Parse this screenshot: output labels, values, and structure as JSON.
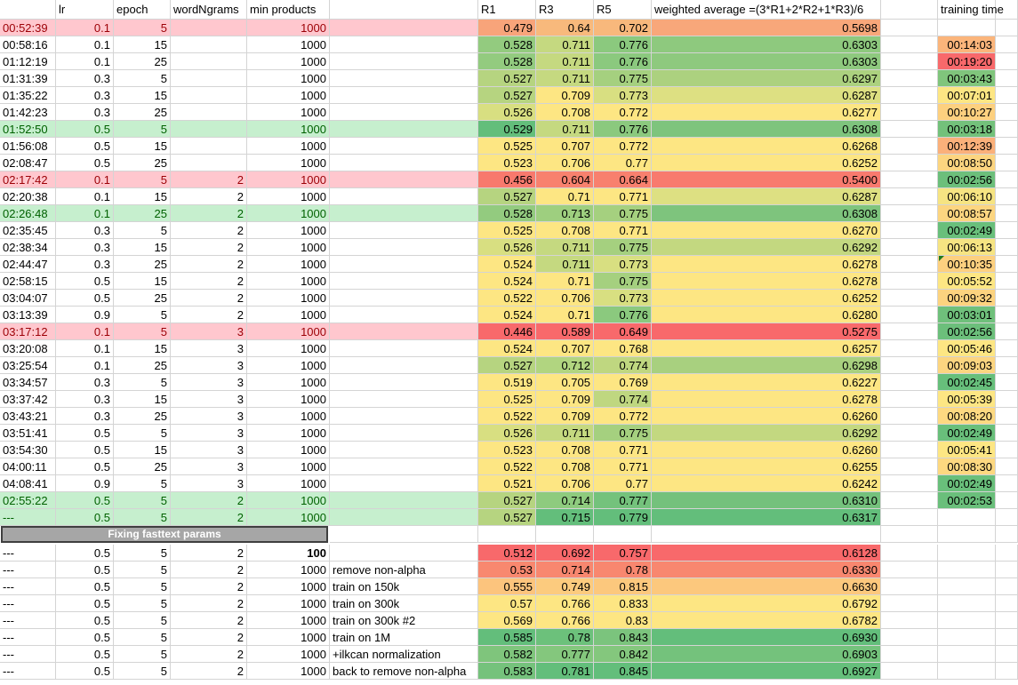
{
  "headers": {
    "time": "",
    "lr": "lr",
    "epoch": "epoch",
    "ngrams": "wordNgrams",
    "minp": "min products",
    "note": "",
    "r1": "R1",
    "r3": "R3",
    "r5": "R5",
    "wavg": "weighted average =(3*R1+2*R2+1*R3)/6",
    "gap": "",
    "ttime": "training time"
  },
  "rows": [
    {
      "time": "00:52:39",
      "lr": "0.1",
      "epoch": "5",
      "ngrams": "",
      "minp": "1000",
      "note": "",
      "r1": "0.479",
      "r3": "0.64",
      "r5": "0.702",
      "wavg": "0.5698",
      "ttime": "",
      "hl": "red",
      "c1": "#f8a47a",
      "c3": "#f8b97c",
      "c5": "#f8b87c",
      "cw": "#f8a77a",
      "ct": ""
    },
    {
      "time": "00:58:16",
      "lr": "0.1",
      "epoch": "15",
      "ngrams": "",
      "minp": "1000",
      "note": "",
      "r1": "0.528",
      "r3": "0.711",
      "r5": "0.776",
      "wavg": "0.6303",
      "ttime": "00:14:03",
      "hl": "",
      "c1": "#93cb7f",
      "c3": "#c5d980",
      "c5": "#8bc97e",
      "cw": "#8ec97e",
      "ct": "#fbb57b"
    },
    {
      "time": "01:12:19",
      "lr": "0.1",
      "epoch": "25",
      "ngrams": "",
      "minp": "1000",
      "note": "",
      "r1": "0.528",
      "r3": "0.711",
      "r5": "0.776",
      "wavg": "0.6303",
      "ttime": "00:19:20",
      "hl": "",
      "c1": "#93cb7f",
      "c3": "#c5d980",
      "c5": "#8bc97e",
      "cw": "#8ec97e",
      "ct": "#f8696b"
    },
    {
      "time": "01:31:39",
      "lr": "0.3",
      "epoch": "5",
      "ngrams": "",
      "minp": "1000",
      "note": "",
      "r1": "0.527",
      "r3": "0.711",
      "r5": "0.775",
      "wavg": "0.6297",
      "ttime": "00:03:43",
      "hl": "",
      "c1": "#b6d480",
      "c3": "#c5d980",
      "c5": "#a5d07f",
      "cw": "#acd17f",
      "ct": "#80c57c"
    },
    {
      "time": "01:35:22",
      "lr": "0.3",
      "epoch": "15",
      "ngrams": "",
      "minp": "1000",
      "note": "",
      "r1": "0.527",
      "r3": "0.709",
      "r5": "0.773",
      "wavg": "0.6287",
      "ttime": "00:07:01",
      "hl": "",
      "c1": "#b6d480",
      "c3": "#fde683",
      "c5": "#d8df81",
      "cw": "#dde082",
      "ct": "#fde683"
    },
    {
      "time": "01:42:23",
      "lr": "0.3",
      "epoch": "25",
      "ngrams": "",
      "minp": "1000",
      "note": "",
      "r1": "0.526",
      "r3": "0.708",
      "r5": "0.772",
      "wavg": "0.6277",
      "ttime": "00:10:27",
      "hl": "",
      "c1": "#d8df81",
      "c3": "#fde683",
      "c5": "#fde683",
      "cw": "#fde683",
      "ct": "#fdd07f"
    },
    {
      "time": "01:52:50",
      "lr": "0.5",
      "epoch": "5",
      "ngrams": "",
      "minp": "1000",
      "note": "",
      "r1": "0.529",
      "r3": "0.711",
      "r5": "0.776",
      "wavg": "0.6308",
      "ttime": "00:03:18",
      "hl": "green",
      "c1": "#63be7b",
      "c3": "#c5d980",
      "c5": "#8bc97e",
      "cw": "#7ec47d",
      "ct": "#73c17b"
    },
    {
      "time": "01:56:08",
      "lr": "0.5",
      "epoch": "15",
      "ngrams": "",
      "minp": "1000",
      "note": "",
      "r1": "0.525",
      "r3": "0.707",
      "r5": "0.772",
      "wavg": "0.6268",
      "ttime": "00:12:39",
      "hl": "",
      "c1": "#fde683",
      "c3": "#fde683",
      "c5": "#fde683",
      "cw": "#fde683",
      "ct": "#fbb07a"
    },
    {
      "time": "02:08:47",
      "lr": "0.5",
      "epoch": "25",
      "ngrams": "",
      "minp": "1000",
      "note": "",
      "r1": "0.523",
      "r3": "0.706",
      "r5": "0.77",
      "wavg": "0.6252",
      "ttime": "00:08:50",
      "hl": "",
      "c1": "#fde683",
      "c3": "#fde683",
      "c5": "#fde683",
      "cw": "#fde683",
      "ct": "#fcd580"
    },
    {
      "time": "02:17:42",
      "lr": "0.1",
      "epoch": "5",
      "ngrams": "2",
      "minp": "1000",
      "note": "",
      "r1": "0.456",
      "r3": "0.604",
      "r5": "0.664",
      "wavg": "0.5400",
      "ttime": "00:02:56",
      "hl": "red",
      "c1": "#f8796d",
      "c3": "#f8816e",
      "c5": "#f8806e",
      "cw": "#f87a6e",
      "ct": "#6cbf7b"
    },
    {
      "time": "02:20:38",
      "lr": "0.1",
      "epoch": "15",
      "ngrams": "2",
      "minp": "1000",
      "note": "",
      "r1": "0.527",
      "r3": "0.71",
      "r5": "0.771",
      "wavg": "0.6287",
      "ttime": "00:06:10",
      "hl": "",
      "c1": "#b6d480",
      "c3": "#fde683",
      "c5": "#fde683",
      "cw": "#dde082",
      "ct": "#f6e482"
    },
    {
      "time": "02:26:48",
      "lr": "0.1",
      "epoch": "25",
      "ngrams": "2",
      "minp": "1000",
      "note": "",
      "r1": "0.528",
      "r3": "0.713",
      "r5": "0.775",
      "wavg": "0.6308",
      "ttime": "00:08:57",
      "hl": "green",
      "c1": "#93cb7f",
      "c3": "#9ecf7f",
      "c5": "#a5d07f",
      "cw": "#7ec47d",
      "ct": "#fcd580"
    },
    {
      "time": "02:35:45",
      "lr": "0.3",
      "epoch": "5",
      "ngrams": "2",
      "minp": "1000",
      "note": "",
      "r1": "0.525",
      "r3": "0.708",
      "r5": "0.771",
      "wavg": "0.6270",
      "ttime": "00:02:49",
      "hl": "",
      "c1": "#fde683",
      "c3": "#fde683",
      "c5": "#fde683",
      "cw": "#fde683",
      "ct": "#69bf7b"
    },
    {
      "time": "02:38:34",
      "lr": "0.3",
      "epoch": "15",
      "ngrams": "2",
      "minp": "1000",
      "note": "",
      "r1": "0.526",
      "r3": "0.711",
      "r5": "0.775",
      "wavg": "0.6292",
      "ttime": "00:06:13",
      "hl": "",
      "c1": "#d8df81",
      "c3": "#c5d980",
      "c5": "#a5d07f",
      "cw": "#c3d880",
      "ct": "#f6e482"
    },
    {
      "time": "02:44:47",
      "lr": "0.3",
      "epoch": "25",
      "ngrams": "2",
      "minp": "1000",
      "note": "",
      "r1": "0.524",
      "r3": "0.711",
      "r5": "0.773",
      "wavg": "0.6278",
      "ttime": "00:10:35",
      "hl": "",
      "c1": "#fde683",
      "c3": "#c5d980",
      "c5": "#d8df81",
      "cw": "#fde683",
      "ct": "#fdd07f"
    },
    {
      "time": "02:58:15",
      "lr": "0.5",
      "epoch": "15",
      "ngrams": "2",
      "minp": "1000",
      "note": "",
      "r1": "0.524",
      "r3": "0.71",
      "r5": "0.775",
      "wavg": "0.6278",
      "ttime": "00:05:52",
      "hl": "",
      "c1": "#fde683",
      "c3": "#fde683",
      "c5": "#a5d07f",
      "cw": "#fde683",
      "ct": "#fde683"
    },
    {
      "time": "03:04:07",
      "lr": "0.5",
      "epoch": "25",
      "ngrams": "2",
      "minp": "1000",
      "note": "",
      "r1": "0.522",
      "r3": "0.706",
      "r5": "0.773",
      "wavg": "0.6252",
      "ttime": "00:09:32",
      "hl": "",
      "c1": "#fde683",
      "c3": "#fde683",
      "c5": "#d8df81",
      "cw": "#fde683",
      "ct": "#fcd37f"
    },
    {
      "time": "03:13:39",
      "lr": "0.9",
      "epoch": "5",
      "ngrams": "2",
      "minp": "1000",
      "note": "",
      "r1": "0.524",
      "r3": "0.71",
      "r5": "0.776",
      "wavg": "0.6280",
      "ttime": "00:03:01",
      "hl": "",
      "c1": "#fde683",
      "c3": "#fde683",
      "c5": "#8bc97e",
      "cw": "#fde683",
      "ct": "#6fc07b"
    },
    {
      "time": "03:17:12",
      "lr": "0.1",
      "epoch": "5",
      "ngrams": "3",
      "minp": "1000",
      "note": "",
      "r1": "0.446",
      "r3": "0.589",
      "r5": "0.649",
      "wavg": "0.5275",
      "ttime": "00:02:56",
      "hl": "red",
      "c1": "#f8696b",
      "c3": "#f8696b",
      "c5": "#f8696b",
      "cw": "#f8696b",
      "ct": "#6cbf7b"
    },
    {
      "time": "03:20:08",
      "lr": "0.1",
      "epoch": "15",
      "ngrams": "3",
      "minp": "1000",
      "note": "",
      "r1": "0.524",
      "r3": "0.707",
      "r5": "0.768",
      "wavg": "0.6257",
      "ttime": "00:05:46",
      "hl": "",
      "c1": "#fde683",
      "c3": "#fde683",
      "c5": "#fde683",
      "cw": "#fde683",
      "ct": "#fde683"
    },
    {
      "time": "03:25:54",
      "lr": "0.1",
      "epoch": "25",
      "ngrams": "3",
      "minp": "1000",
      "note": "",
      "r1": "0.527",
      "r3": "0.712",
      "r5": "0.774",
      "wavg": "0.6298",
      "ttime": "00:09:03",
      "hl": "",
      "c1": "#b6d480",
      "c3": "#b1d580",
      "c5": "#bfd780",
      "cw": "#a8d07f",
      "ct": "#fcd580"
    },
    {
      "time": "03:34:57",
      "lr": "0.3",
      "epoch": "5",
      "ngrams": "3",
      "minp": "1000",
      "note": "",
      "r1": "0.519",
      "r3": "0.705",
      "r5": "0.769",
      "wavg": "0.6227",
      "ttime": "00:02:45",
      "hl": "",
      "c1": "#fde683",
      "c3": "#fde683",
      "c5": "#fde683",
      "cw": "#fde683",
      "ct": "#67bf7b"
    },
    {
      "time": "03:37:42",
      "lr": "0.3",
      "epoch": "15",
      "ngrams": "3",
      "minp": "1000",
      "note": "",
      "r1": "0.525",
      "r3": "0.709",
      "r5": "0.774",
      "wavg": "0.6278",
      "ttime": "00:05:39",
      "hl": "",
      "c1": "#fde683",
      "c3": "#fde683",
      "c5": "#bfd780",
      "cw": "#fde683",
      "ct": "#fde683"
    },
    {
      "time": "03:43:21",
      "lr": "0.3",
      "epoch": "25",
      "ngrams": "3",
      "minp": "1000",
      "note": "",
      "r1": "0.522",
      "r3": "0.709",
      "r5": "0.772",
      "wavg": "0.6260",
      "ttime": "00:08:20",
      "hl": "",
      "c1": "#fde683",
      "c3": "#fde683",
      "c5": "#fde683",
      "cw": "#fde683",
      "ct": "#fdd981"
    },
    {
      "time": "03:51:41",
      "lr": "0.5",
      "epoch": "5",
      "ngrams": "3",
      "minp": "1000",
      "note": "",
      "r1": "0.526",
      "r3": "0.711",
      "r5": "0.775",
      "wavg": "0.6292",
      "ttime": "00:02:49",
      "hl": "",
      "c1": "#d8df81",
      "c3": "#c5d980",
      "c5": "#a5d07f",
      "cw": "#c3d880",
      "ct": "#69bf7b"
    },
    {
      "time": "03:54:30",
      "lr": "0.5",
      "epoch": "15",
      "ngrams": "3",
      "minp": "1000",
      "note": "",
      "r1": "0.523",
      "r3": "0.708",
      "r5": "0.771",
      "wavg": "0.6260",
      "ttime": "00:05:41",
      "hl": "",
      "c1": "#fde683",
      "c3": "#fde683",
      "c5": "#fde683",
      "cw": "#fde683",
      "ct": "#fde683"
    },
    {
      "time": "04:00:11",
      "lr": "0.5",
      "epoch": "25",
      "ngrams": "3",
      "minp": "1000",
      "note": "",
      "r1": "0.522",
      "r3": "0.708",
      "r5": "0.771",
      "wavg": "0.6255",
      "ttime": "00:08:30",
      "hl": "",
      "c1": "#fde683",
      "c3": "#fde683",
      "c5": "#fde683",
      "cw": "#fde683",
      "ct": "#fdd880"
    },
    {
      "time": "04:08:41",
      "lr": "0.9",
      "epoch": "5",
      "ngrams": "3",
      "minp": "1000",
      "note": "",
      "r1": "0.521",
      "r3": "0.706",
      "r5": "0.77",
      "wavg": "0.6242",
      "ttime": "00:02:49",
      "hl": "",
      "c1": "#fde683",
      "c3": "#fde683",
      "c5": "#fde683",
      "cw": "#fde683",
      "ct": "#69bf7b"
    },
    {
      "time": "02:55:22",
      "lr": "0.5",
      "epoch": "5",
      "ngrams": "2",
      "minp": "1000",
      "note": "",
      "r1": "0.527",
      "r3": "0.714",
      "r5": "0.777",
      "wavg": "0.6310",
      "ttime": "00:02:53",
      "hl": "green",
      "c1": "#b6d480",
      "c3": "#8ecb7e",
      "c5": "#74c27c",
      "cw": "#74c17c",
      "ct": "#6abf7b"
    },
    {
      "time": "---",
      "lr": "0.5",
      "epoch": "5",
      "ngrams": "2",
      "minp": "1000",
      "note": "",
      "r1": "0.527",
      "r3": "0.715",
      "r5": "0.779",
      "wavg": "0.6317",
      "ttime": "",
      "hl": "green",
      "c1": "#b6d480",
      "c3": "#63be7b",
      "c5": "#63be7b",
      "cw": "#63be7b",
      "ct": ""
    }
  ],
  "banner": "Fixing fasttext params",
  "rows2": [
    {
      "time": "---",
      "lr": "0.5",
      "epoch": "5",
      "ngrams": "2",
      "minp": "100",
      "note": "",
      "r1": "0.512",
      "r3": "0.692",
      "r5": "0.757",
      "wavg": "0.6128",
      "c1": "#f8696b",
      "c3": "#f8696b",
      "c5": "#f8696b",
      "cw": "#f8696b",
      "bold": true
    },
    {
      "time": "---",
      "lr": "0.5",
      "epoch": "5",
      "ngrams": "2",
      "minp": "1000",
      "note": "remove non-alpha",
      "r1": "0.53",
      "r3": "0.714",
      "r5": "0.78",
      "wavg": "0.6330",
      "c1": "#f8886f",
      "c3": "#f8876f",
      "c5": "#f8876f",
      "cw": "#f8876f",
      "bold": false
    },
    {
      "time": "---",
      "lr": "0.5",
      "epoch": "5",
      "ngrams": "2",
      "minp": "1000",
      "note": "train on 150k",
      "r1": "0.555",
      "r3": "0.749",
      "r5": "0.815",
      "wavg": "0.6630",
      "c1": "#fcc47d",
      "c3": "#fccb7e",
      "c5": "#fcc87d",
      "cw": "#fcc87d",
      "bold": false
    },
    {
      "time": "---",
      "lr": "0.5",
      "epoch": "5",
      "ngrams": "2",
      "minp": "1000",
      "note": "train on 300k",
      "r1": "0.57",
      "r3": "0.766",
      "r5": "0.833",
      "wavg": "0.6792",
      "c1": "#fde683",
      "c3": "#fde683",
      "c5": "#fde683",
      "cw": "#fde683",
      "bold": false
    },
    {
      "time": "---",
      "lr": "0.5",
      "epoch": "5",
      "ngrams": "2",
      "minp": "1000",
      "note": "train on 300k #2",
      "r1": "0.569",
      "r3": "0.766",
      "r5": "0.83",
      "wavg": "0.6782",
      "c1": "#fde683",
      "c3": "#fde683",
      "c5": "#fde683",
      "cw": "#fde683",
      "bold": false
    },
    {
      "time": "---",
      "lr": "0.5",
      "epoch": "5",
      "ngrams": "2",
      "minp": "1000",
      "note": "train on 1M",
      "r1": "0.585",
      "r3": "0.78",
      "r5": "0.843",
      "wavg": "0.6930",
      "c1": "#63be7b",
      "c3": "#6cc17b",
      "c5": "#7bc47d",
      "cw": "#63be7b",
      "bold": false
    },
    {
      "time": "---",
      "lr": "0.5",
      "epoch": "5",
      "ngrams": "2",
      "minp": "1000",
      "note": "+ilkcan normalization",
      "r1": "0.582",
      "r3": "0.777",
      "r5": "0.842",
      "wavg": "0.6903",
      "c1": "#7fc57c",
      "c3": "#84c77d",
      "c5": "#84c77d",
      "cw": "#74c27c",
      "bold": false
    },
    {
      "time": "---",
      "lr": "0.5",
      "epoch": "5",
      "ngrams": "2",
      "minp": "1000",
      "note": "back to remove non-alpha",
      "r1": "0.583",
      "r3": "0.781",
      "r5": "0.845",
      "wavg": "0.6927",
      "c1": "#75c27c",
      "c3": "#63be7b",
      "c5": "#63be7b",
      "cw": "#65bf7b",
      "bold": false
    }
  ],
  "colors": {
    "red_row": "#ffc7ce",
    "red_text": "#9c0006",
    "green_row": "#c6efce",
    "green_text": "#006100"
  }
}
